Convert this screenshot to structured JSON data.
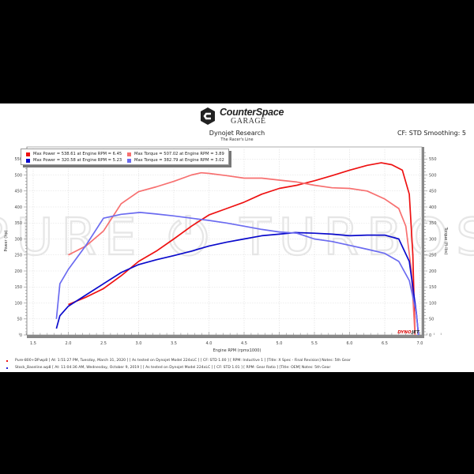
{
  "header": {
    "brand_title": "CounterSpace",
    "brand_subtitle": "GARAGE",
    "research": "Dynojet Research",
    "tagline": "The Racer's Line",
    "correction": "CF: STD Smoothing: 5"
  },
  "watermark": "PURE ⏻ TURBOS",
  "dynojet_logo": {
    "red": "DYNO",
    "dark": "JET"
  },
  "legend": {
    "items": [
      {
        "label": "Max Power = 538.61 at Engine RPM = 6.45",
        "color": "#ee1111"
      },
      {
        "label": "Max Torque = 507.02 at Engine RPM = 3.89",
        "color": "#f77070"
      },
      {
        "label": "Max Power = 320.58 at Engine RPM = 5.23",
        "color": "#0a0acc"
      },
      {
        "label": "Max Torque = 382.79 at Engine RPM = 3.02",
        "color": "#6b6bf0"
      }
    ]
  },
  "footer": {
    "runs": [
      {
        "color": "#ee1111",
        "text": "Pure-800+DP.wp8 [ At: 1:51:27 PM, Tuesday, March 31, 2020 ] [ As tested on Dynojet Model 224xLC ] [ CF: STD 1.00 ] [ RPM: Inductive 1 ] [Title: X Spec - Final Revision]  Notes: 5th Gear"
      },
      {
        "color": "#2222dd",
        "text": "Stock_Baseline.wp8 [ At: 11:04:36 AM, Wednesday, October 9, 2019 ] [ As tested on Dynojet Model 224xLC ] [ CF: STD 1.01 ] [ RPM: Gear Ratio ] [Title: OEM]  Notes: 5th Gear"
      }
    ]
  },
  "chart_data": {
    "type": "line",
    "title": "Dynojet Research",
    "xlabel": "Engine RPM (rpmx1000)",
    "ylabel": "Power (hp)",
    "ylabel_right": "Torque (ft-lbs)",
    "xlim": [
      1.3,
      7.35
    ],
    "ylim": [
      0,
      575
    ],
    "x_ticks": [
      "1.5",
      "2.0",
      "2.5",
      "3.0",
      "3.5",
      "4.0",
      "4.5",
      "5.0",
      "5.5",
      "6.0",
      "6.5",
      "7.0"
    ],
    "y_ticks": [
      "0",
      "50",
      "100",
      "150",
      "200",
      "250",
      "300",
      "350",
      "400",
      "450",
      "500",
      "550"
    ],
    "grid": true,
    "legend_position": "top-left",
    "series": [
      {
        "name": "Pure-800+DP Power",
        "color": "#ee1111",
        "x": [
          2.0,
          2.25,
          2.5,
          2.75,
          3.0,
          3.25,
          3.5,
          3.75,
          4.0,
          4.25,
          4.5,
          4.75,
          5.0,
          5.25,
          5.5,
          5.75,
          6.0,
          6.25,
          6.45,
          6.6,
          6.75,
          6.85,
          6.9,
          6.93
        ],
        "y": [
          95,
          118,
          145,
          185,
          230,
          262,
          300,
          340,
          375,
          395,
          415,
          440,
          458,
          468,
          482,
          498,
          515,
          530,
          538,
          532,
          515,
          440,
          250,
          0
        ]
      },
      {
        "name": "Pure-800+DP Torque",
        "color": "#f77070",
        "x": [
          2.0,
          2.25,
          2.5,
          2.75,
          3.0,
          3.25,
          3.5,
          3.75,
          3.89,
          4.0,
          4.25,
          4.5,
          4.75,
          5.0,
          5.25,
          5.5,
          5.75,
          6.0,
          6.25,
          6.5,
          6.7,
          6.8,
          6.88,
          6.93
        ],
        "y": [
          250,
          278,
          325,
          410,
          448,
          463,
          480,
          500,
          507,
          505,
          498,
          490,
          490,
          484,
          478,
          468,
          460,
          458,
          450,
          425,
          395,
          340,
          200,
          0
        ]
      },
      {
        "name": "Stock Baseline Power",
        "color": "#0a0acc",
        "x": [
          1.83,
          1.88,
          2.0,
          2.25,
          2.5,
          2.75,
          3.0,
          3.25,
          3.5,
          3.75,
          4.0,
          4.25,
          4.5,
          4.75,
          5.0,
          5.23,
          5.5,
          5.75,
          6.0,
          6.25,
          6.5,
          6.7,
          6.85,
          6.95,
          6.98
        ],
        "y": [
          20,
          60,
          90,
          125,
          160,
          195,
          220,
          235,
          248,
          262,
          278,
          290,
          300,
          310,
          315,
          320,
          318,
          315,
          310,
          312,
          312,
          300,
          230,
          70,
          0
        ]
      },
      {
        "name": "Stock Baseline Torque",
        "color": "#6b6bf0",
        "x": [
          1.83,
          1.88,
          2.0,
          2.25,
          2.5,
          2.75,
          3.02,
          3.25,
          3.5,
          3.75,
          4.0,
          4.25,
          4.5,
          4.75,
          5.0,
          5.25,
          5.5,
          5.75,
          6.0,
          6.25,
          6.5,
          6.7,
          6.85,
          6.95,
          6.98
        ],
        "y": [
          50,
          160,
          205,
          280,
          365,
          377,
          383,
          378,
          372,
          365,
          358,
          350,
          340,
          330,
          322,
          318,
          300,
          292,
          280,
          268,
          255,
          230,
          170,
          70,
          0
        ]
      }
    ]
  }
}
